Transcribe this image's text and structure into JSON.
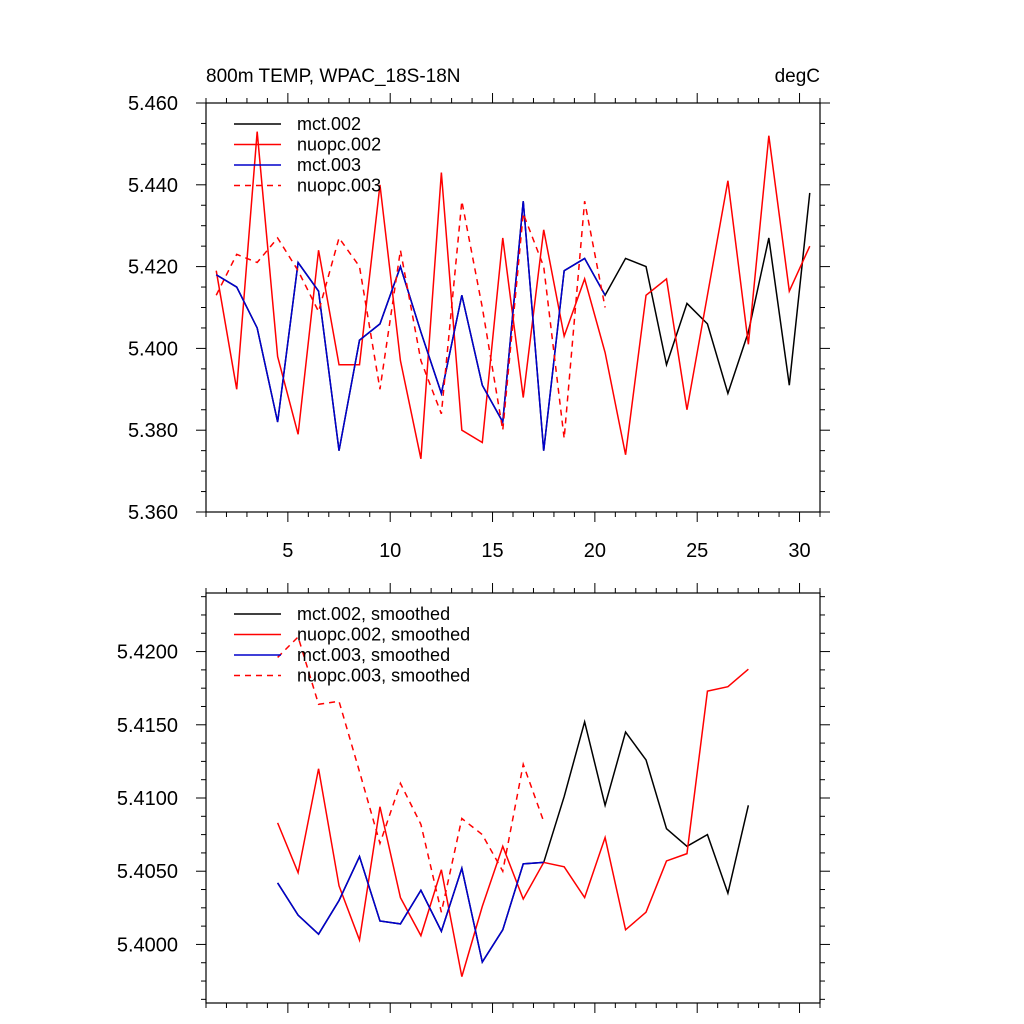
{
  "chart_data": [
    {
      "type": "line",
      "title_left": "800m TEMP, WPAC_18S-18N",
      "title_right": "degC",
      "xlabel": "",
      "ylabel": "",
      "xlim": [
        1,
        31
      ],
      "ylim": [
        5.36,
        5.46
      ],
      "xticks": [
        5,
        10,
        15,
        20,
        25,
        30
      ],
      "xtick_labels": [
        "5",
        "10",
        "15",
        "20",
        "25",
        "30"
      ],
      "yticks": [
        5.36,
        5.38,
        5.4,
        5.42,
        5.44,
        5.46
      ],
      "ytick_labels": [
        "5.360",
        "5.380",
        "5.400",
        "5.420",
        "5.440",
        "5.460"
      ],
      "legend_position": "top-left",
      "series": [
        {
          "name": "mct.002",
          "color": "#000000",
          "dash": "solid",
          "x": [
            1.5,
            2.5,
            3.5,
            4.5,
            5.5,
            6.5,
            7.5,
            8.5,
            9.5,
            10.5,
            11.5,
            12.5,
            13.5,
            14.5,
            15.5,
            16.5,
            17.5,
            18.5,
            19.5,
            20.5,
            21.5,
            22.5,
            23.5,
            24.5,
            25.5,
            26.5,
            27.5,
            28.5,
            29.5,
            30.5
          ],
          "values": [
            5.418,
            5.415,
            5.405,
            5.382,
            5.421,
            5.414,
            5.375,
            5.402,
            5.406,
            5.42,
            5.404,
            5.389,
            5.413,
            5.391,
            5.382,
            5.436,
            5.375,
            5.419,
            5.422,
            5.413,
            5.422,
            5.42,
            5.396,
            5.411,
            5.406,
            5.389,
            5.404,
            5.427,
            5.391,
            5.438
          ]
        },
        {
          "name": "nuopc.002",
          "color": "#ff0000",
          "dash": "solid",
          "x": [
            1.5,
            2.5,
            3.5,
            4.5,
            5.5,
            6.5,
            7.5,
            8.5,
            9.5,
            10.5,
            11.5,
            12.5,
            13.5,
            14.5,
            15.5,
            16.5,
            17.5,
            18.5,
            19.5,
            20.5,
            21.5,
            22.5,
            23.5,
            24.5,
            25.5,
            26.5,
            27.5,
            28.5,
            29.5,
            30.5
          ],
          "values": [
            5.419,
            5.39,
            5.453,
            5.398,
            5.379,
            5.424,
            5.396,
            5.396,
            5.44,
            5.397,
            5.373,
            5.443,
            5.38,
            5.377,
            5.427,
            5.388,
            5.429,
            5.403,
            5.417,
            5.399,
            5.374,
            5.413,
            5.417,
            5.385,
            5.413,
            5.441,
            5.401,
            5.452,
            5.414,
            5.425
          ]
        },
        {
          "name": "mct.003",
          "color": "#0000cc",
          "dash": "solid",
          "x": [
            1.5,
            2.5,
            3.5,
            4.5,
            5.5,
            6.5,
            7.5,
            8.5,
            9.5,
            10.5,
            11.5,
            12.5,
            13.5,
            14.5,
            15.5,
            16.5,
            17.5,
            18.5,
            19.5,
            20.5
          ],
          "values": [
            5.418,
            5.415,
            5.405,
            5.382,
            5.421,
            5.414,
            5.375,
            5.402,
            5.406,
            5.42,
            5.404,
            5.389,
            5.413,
            5.391,
            5.382,
            5.436,
            5.375,
            5.419,
            5.422,
            5.413
          ]
        },
        {
          "name": "nuopc.003",
          "color": "#ff0000",
          "dash": "dashed",
          "x": [
            1.5,
            2.5,
            3.5,
            4.5,
            5.5,
            6.5,
            7.5,
            8.5,
            9.5,
            10.5,
            11.5,
            12.5,
            13.5,
            14.5,
            15.5,
            16.5,
            17.5,
            18.5,
            19.5,
            20.5
          ],
          "values": [
            5.413,
            5.423,
            5.421,
            5.427,
            5.419,
            5.409,
            5.427,
            5.42,
            5.39,
            5.424,
            5.397,
            5.384,
            5.436,
            5.41,
            5.38,
            5.433,
            5.42,
            5.378,
            5.436,
            5.41
          ]
        }
      ]
    },
    {
      "type": "line",
      "title_left": "",
      "title_right": "",
      "xlabel": "",
      "ylabel": "",
      "xlim": [
        1,
        31
      ],
      "ylim": [
        5.396,
        5.424
      ],
      "xticks": [
        5,
        10,
        15,
        20,
        25,
        30
      ],
      "xtick_labels": [],
      "yticks": [
        5.4,
        5.405,
        5.41,
        5.415,
        5.42
      ],
      "ytick_labels": [
        "5.4000",
        "5.4050",
        "5.4100",
        "5.4150",
        "5.4200"
      ],
      "legend_position": "top-left",
      "series": [
        {
          "name": "mct.002, smoothed",
          "color": "#000000",
          "dash": "solid",
          "x": [
            4.5,
            5.5,
            6.5,
            7.5,
            8.5,
            9.5,
            10.5,
            11.5,
            12.5,
            13.5,
            14.5,
            15.5,
            16.5,
            17.5,
            18.5,
            19.5,
            20.5,
            21.5,
            22.5,
            23.5,
            24.5,
            25.5,
            26.5,
            27.5
          ],
          "values": [
            5.4042,
            5.402,
            5.4007,
            5.403,
            5.406,
            5.4016,
            5.4014,
            5.4037,
            5.4009,
            5.4052,
            5.3988,
            5.401,
            5.4055,
            5.4056,
            5.4101,
            5.4152,
            5.4095,
            5.4145,
            5.4126,
            5.4079,
            5.4067,
            5.4075,
            5.4035,
            5.4095
          ]
        },
        {
          "name": "nuopc.002, smoothed",
          "color": "#ff0000",
          "dash": "solid",
          "x": [
            4.5,
            5.5,
            6.5,
            7.5,
            8.5,
            9.5,
            10.5,
            11.5,
            12.5,
            13.5,
            14.5,
            15.5,
            16.5,
            17.5,
            18.5,
            19.5,
            20.5,
            21.5,
            22.5,
            23.5,
            24.5,
            25.5,
            26.5,
            27.5
          ],
          "values": [
            5.4083,
            5.4049,
            5.412,
            5.404,
            5.4003,
            5.4094,
            5.4032,
            5.4006,
            5.4051,
            5.3978,
            5.4026,
            5.4067,
            5.4031,
            5.4056,
            5.4053,
            5.4032,
            5.4073,
            5.401,
            5.4022,
            5.4057,
            5.4062,
            5.4173,
            5.4176,
            5.4188
          ]
        },
        {
          "name": "mct.003, smoothed",
          "color": "#0000cc",
          "dash": "solid",
          "x": [
            4.5,
            5.5,
            6.5,
            7.5,
            8.5,
            9.5,
            10.5,
            11.5,
            12.5,
            13.5,
            14.5,
            15.5,
            16.5,
            17.5
          ],
          "values": [
            5.4042,
            5.402,
            5.4007,
            5.403,
            5.406,
            5.4016,
            5.4014,
            5.4037,
            5.4009,
            5.4052,
            5.3988,
            5.401,
            5.4055,
            5.4056
          ]
        },
        {
          "name": "nuopc.003, smoothed",
          "color": "#ff0000",
          "dash": "dashed",
          "x": [
            4.5,
            5.5,
            6.5,
            7.5,
            8.5,
            9.5,
            10.5,
            11.5,
            12.5,
            13.5,
            14.5,
            15.5,
            16.5,
            17.5
          ],
          "values": [
            5.4196,
            5.421,
            5.4164,
            5.4166,
            5.4118,
            5.4069,
            5.411,
            5.4082,
            5.4022,
            5.4086,
            5.4075,
            5.405,
            5.4123,
            5.4084
          ]
        }
      ]
    }
  ]
}
